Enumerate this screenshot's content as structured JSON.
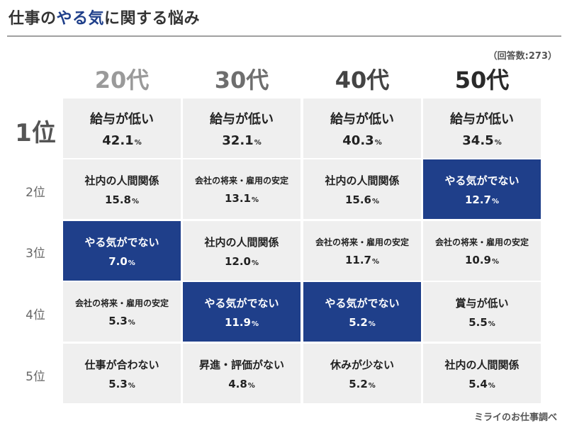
{
  "title": {
    "part1": "仕事の",
    "highlight": "やる気",
    "part2": "に関する悩み"
  },
  "note": "（回答数:273）",
  "source": "ミライのお仕事調べ",
  "colors": {
    "highlight": "#1f3f8a",
    "cell": "#efefef"
  },
  "chart_data": {
    "type": "table",
    "columns": [
      {
        "label": "20代",
        "color": "#9a9a9a"
      },
      {
        "label": "30代",
        "color": "#6e6e6e"
      },
      {
        "label": "40代",
        "color": "#444444"
      },
      {
        "label": "50代",
        "color": "#2a2a2a"
      }
    ],
    "rows": [
      {
        "rank": "1位",
        "cells": [
          {
            "label": "給与が低い",
            "value": "42.1",
            "unit": "%",
            "highlight": false
          },
          {
            "label": "給与が低い",
            "value": "32.1",
            "unit": "%",
            "highlight": false
          },
          {
            "label": "給与が低い",
            "value": "40.3",
            "unit": "%",
            "highlight": false
          },
          {
            "label": "給与が低い",
            "value": "34.5",
            "unit": "%",
            "highlight": false
          }
        ]
      },
      {
        "rank": "2位",
        "cells": [
          {
            "label": "社内の人間関係",
            "value": "15.8",
            "unit": "%",
            "highlight": false
          },
          {
            "label": "会社の将来・雇用の安定",
            "value": "13.1",
            "unit": "%",
            "highlight": false
          },
          {
            "label": "社内の人間関係",
            "value": "15.6",
            "unit": "%",
            "highlight": false
          },
          {
            "label": "やる気がでない",
            "value": "12.7",
            "unit": "%",
            "highlight": true
          }
        ]
      },
      {
        "rank": "3位",
        "cells": [
          {
            "label": "やる気がでない",
            "value": "7.0",
            "unit": "%",
            "highlight": true
          },
          {
            "label": "社内の人間関係",
            "value": "12.0",
            "unit": "%",
            "highlight": false
          },
          {
            "label": "会社の将来・雇用の安定",
            "value": "11.7",
            "unit": "%",
            "highlight": false
          },
          {
            "label": "会社の将来・雇用の安定",
            "value": "10.9",
            "unit": "%",
            "highlight": false
          }
        ]
      },
      {
        "rank": "4位",
        "cells": [
          {
            "label": "会社の将来・雇用の安定",
            "value": "5.3",
            "unit": "%",
            "highlight": false
          },
          {
            "label": "やる気がでない",
            "value": "11.9",
            "unit": "%",
            "highlight": true
          },
          {
            "label": "やる気がでない",
            "value": "5.2",
            "unit": "%",
            "highlight": true
          },
          {
            "label": "賞与が低い",
            "value": "5.5",
            "unit": "%",
            "highlight": false
          }
        ]
      },
      {
        "rank": "5位",
        "cells": [
          {
            "label": "仕事が合わない",
            "value": "5.3",
            "unit": "%",
            "highlight": false
          },
          {
            "label": "昇進・評価がない",
            "value": "4.8",
            "unit": "%",
            "highlight": false
          },
          {
            "label": "休みが少ない",
            "value": "5.2",
            "unit": "%",
            "highlight": false
          },
          {
            "label": "社内の人間関係",
            "value": "5.4",
            "unit": "%",
            "highlight": false
          }
        ]
      }
    ]
  }
}
